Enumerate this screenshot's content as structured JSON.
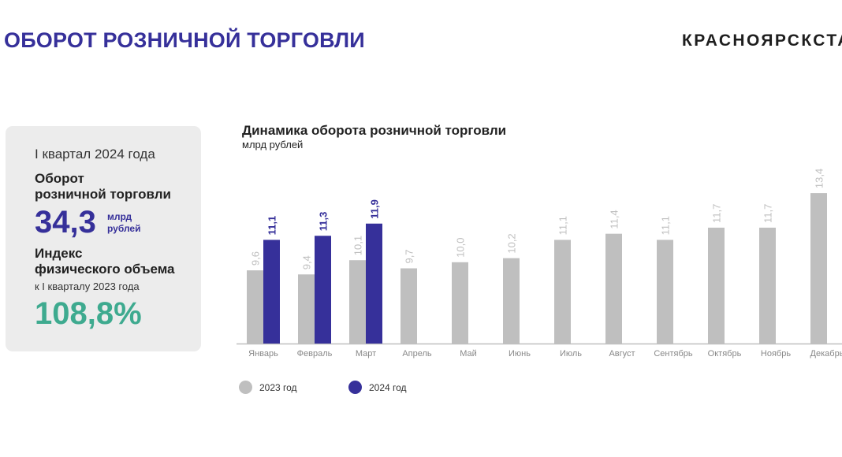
{
  "header": {
    "title": "ОБОРОТ РОЗНИЧНОЙ ТОРГОВЛИ",
    "brand": "КРАСНОЯРСКСТАТ"
  },
  "card": {
    "period": "I квартал 2024 года",
    "turnover_label_1": "Оборот",
    "turnover_label_2": "розничной торговли",
    "turnover_value": "34,3",
    "turnover_unit_1": "млрд",
    "turnover_unit_2": "рублей",
    "index_label_1": "Индекс",
    "index_label_2": "физического объема",
    "index_sub": "к I кварталу 2023 года",
    "index_value": "108,8%"
  },
  "colors": {
    "title": "#36309a",
    "series_2023": "#bfbfbf",
    "series_2024": "#36309a",
    "index": "#3eaa8f"
  },
  "chart_data": {
    "type": "bar",
    "title": "Динамика оборота розничной торговли",
    "subtitle": "млрд рублей",
    "categories": [
      "Январь",
      "Февраль",
      "Март",
      "Апрель",
      "Май",
      "Июнь",
      "Июль",
      "Август",
      "Сентябрь",
      "Октябрь",
      "Ноябрь",
      "Декабрь"
    ],
    "series": [
      {
        "name": "2023 год",
        "color": "#bfbfbf",
        "values": [
          9.6,
          9.4,
          10.1,
          9.7,
          10.0,
          10.2,
          11.1,
          11.4,
          11.1,
          11.7,
          11.7,
          13.4
        ],
        "labels": [
          "9,6",
          "9,4",
          "10,1",
          "9,7",
          "10,0",
          "10,2",
          "11,1",
          "11,4",
          "11,1",
          "11,7",
          "11,7",
          "13,4"
        ]
      },
      {
        "name": "2024 год",
        "color": "#36309a",
        "values": [
          11.1,
          11.3,
          11.9,
          null,
          null,
          null,
          null,
          null,
          null,
          null,
          null,
          null
        ],
        "labels": [
          "11,1",
          "11,3",
          "11,9"
        ]
      }
    ],
    "ylim": [
      6,
      14
    ],
    "grid": false,
    "legend": "bottom"
  }
}
